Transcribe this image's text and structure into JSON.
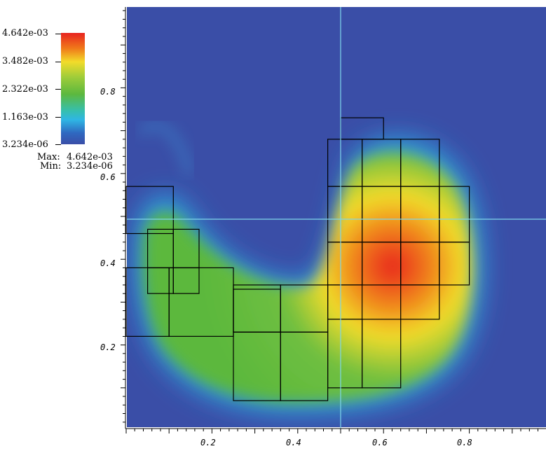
{
  "legend": {
    "ticks": [
      "4.642e-03",
      "3.482e-03",
      "2.322e-03",
      "1.163e-03",
      "3.234e-06"
    ],
    "max_label": "Max:",
    "max_value": "4.642e-03",
    "min_label": "Min:",
    "min_value": "3.234e-06",
    "colormap": [
      "#3a4ea7",
      "#2f68c0",
      "#2fb6e4",
      "#36bfae",
      "#5cb83e",
      "#9dcc3a",
      "#f2dc2a",
      "#f07a1a",
      "#e8231f"
    ]
  },
  "chart_data": {
    "type": "heatmap",
    "title": "",
    "xlabel": "",
    "ylabel": "",
    "xlim": [
      0.0,
      1.0
    ],
    "ylim": [
      0.0,
      1.0
    ],
    "x_ticks": [
      "0.2",
      "0.4",
      "0.6",
      "0.8"
    ],
    "y_ticks": [
      "0.2",
      "0.4",
      "0.6",
      "0.8"
    ],
    "value_range": [
      3.234e-06,
      0.004642
    ],
    "background_value": 3.234e-06,
    "peak": {
      "x": 0.64,
      "y": 0.38,
      "value": 0.004642
    },
    "crosshair": {
      "x": 0.5,
      "y": 0.5
    },
    "mesh_cells": [
      [
        0.0,
        0.46,
        0.11,
        0.57
      ],
      [
        0.05,
        0.38,
        0.11,
        0.47
      ],
      [
        0.05,
        0.32,
        0.11,
        0.38
      ],
      [
        0.11,
        0.38,
        0.17,
        0.47
      ],
      [
        0.11,
        0.32,
        0.17,
        0.38
      ],
      [
        0.0,
        0.22,
        0.1,
        0.38
      ],
      [
        0.1,
        0.22,
        0.25,
        0.38
      ],
      [
        0.25,
        0.23,
        0.36,
        0.33
      ],
      [
        0.25,
        0.07,
        0.36,
        0.23
      ],
      [
        0.36,
        0.07,
        0.47,
        0.23
      ],
      [
        0.25,
        0.23,
        0.36,
        0.34
      ],
      [
        0.36,
        0.23,
        0.47,
        0.34
      ],
      [
        0.47,
        0.26,
        0.55,
        0.34
      ],
      [
        0.47,
        0.1,
        0.55,
        0.26
      ],
      [
        0.55,
        0.1,
        0.64,
        0.26
      ],
      [
        0.47,
        0.34,
        0.55,
        0.44
      ],
      [
        0.55,
        0.34,
        0.64,
        0.44
      ],
      [
        0.64,
        0.34,
        0.73,
        0.44
      ],
      [
        0.64,
        0.26,
        0.73,
        0.34
      ],
      [
        0.73,
        0.34,
        0.8,
        0.44
      ],
      [
        0.47,
        0.44,
        0.55,
        0.57
      ],
      [
        0.55,
        0.44,
        0.64,
        0.57
      ],
      [
        0.64,
        0.44,
        0.73,
        0.57
      ],
      [
        0.73,
        0.44,
        0.8,
        0.57
      ],
      [
        0.47,
        0.57,
        0.55,
        0.68
      ],
      [
        0.55,
        0.57,
        0.64,
        0.68
      ],
      [
        0.64,
        0.57,
        0.73,
        0.68
      ],
      [
        0.5,
        0.68,
        0.6,
        0.73
      ]
    ]
  }
}
